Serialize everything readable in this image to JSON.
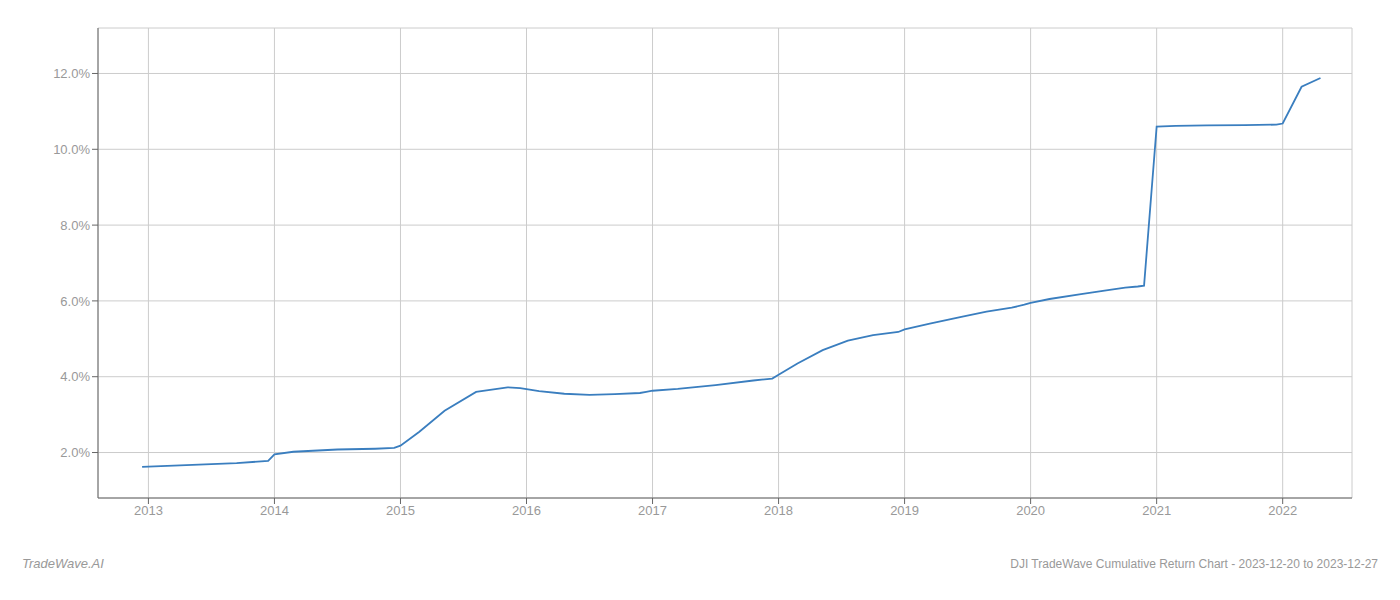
{
  "chart_data": {
    "type": "line",
    "title": "DJI TradeWave Cumulative Return Chart - 2023-12-20 to 2023-12-27",
    "annotations": [
      "TradeWave.AI"
    ],
    "color": "#3a7ebf",
    "grid": true,
    "x": [
      2012.95,
      2013.0,
      2013.15,
      2013.4,
      2013.7,
      2013.95,
      2014.0,
      2014.15,
      2014.5,
      2014.8,
      2014.95,
      2015.0,
      2015.15,
      2015.35,
      2015.6,
      2015.85,
      2015.95,
      2016.1,
      2016.3,
      2016.5,
      2016.7,
      2016.9,
      2016.95,
      2017.0,
      2017.2,
      2017.5,
      2017.8,
      2017.95,
      2018.0,
      2018.15,
      2018.35,
      2018.55,
      2018.75,
      2018.95,
      2019.0,
      2019.2,
      2019.45,
      2019.65,
      2019.85,
      2019.95,
      2020.0,
      2020.15,
      2020.4,
      2020.6,
      2020.75,
      2020.85,
      2020.9,
      2021.0,
      2021.15,
      2021.4,
      2021.7,
      2021.95,
      2022.0,
      2022.15,
      2022.3
    ],
    "values": [
      1.62,
      1.63,
      1.65,
      1.68,
      1.72,
      1.78,
      1.95,
      2.02,
      2.08,
      2.1,
      2.12,
      2.18,
      2.55,
      3.1,
      3.6,
      3.72,
      3.7,
      3.62,
      3.55,
      3.52,
      3.54,
      3.57,
      3.6,
      3.63,
      3.68,
      3.78,
      3.9,
      3.95,
      4.05,
      4.35,
      4.7,
      4.95,
      5.1,
      5.18,
      5.25,
      5.4,
      5.58,
      5.72,
      5.82,
      5.9,
      5.95,
      6.05,
      6.18,
      6.28,
      6.35,
      6.38,
      6.4,
      10.6,
      10.62,
      10.63,
      10.64,
      10.65,
      10.68,
      11.65,
      11.88
    ],
    "xlim": [
      2012.6,
      2022.55
    ],
    "ylim": [
      0.8,
      13.2
    ],
    "xticks": [
      2013,
      2014,
      2015,
      2016,
      2017,
      2018,
      2019,
      2020,
      2021,
      2022
    ],
    "yticks": [
      {
        "value": 2.0,
        "label": "2.0%"
      },
      {
        "value": 4.0,
        "label": "4.0%"
      },
      {
        "value": 6.0,
        "label": "6.0%"
      },
      {
        "value": 8.0,
        "label": "8.0%"
      },
      {
        "value": 10.0,
        "label": "10.0%"
      },
      {
        "value": 12.0,
        "label": "12.0%"
      }
    ]
  }
}
